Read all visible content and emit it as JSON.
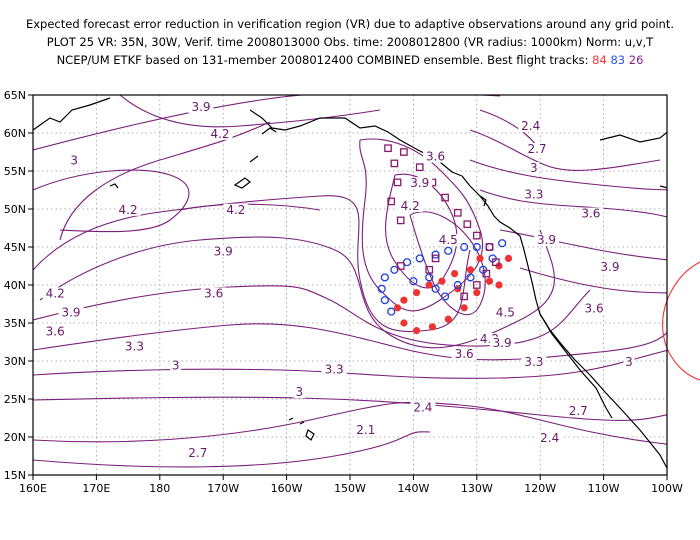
{
  "title": {
    "line1": "Expected forecast error reduction in verification region (VR) due to adaptive observations around any grid point.",
    "line2": "PLOT 25 VR: 35N, 30W, Verif. time 2008013000 Obs. time: 2008012800 (VR radius: 1000km) Norm: u,v,T",
    "line3_prefix": "NCEP/UM ETKF based on 131-member 2008012400 COMBINED ensemble.  Best flight tracks:",
    "track84": "84",
    "track83": "83",
    "track26": "26"
  },
  "axes": {
    "x_labels": [
      "160E",
      "170E",
      "180",
      "170W",
      "160W",
      "150W",
      "140W",
      "130W",
      "120W",
      "110W",
      "100W"
    ],
    "y_labels": [
      "15N",
      "20N",
      "25N",
      "30N",
      "35N",
      "40N",
      "45N",
      "50N",
      "55N",
      "60N",
      "65N"
    ]
  },
  "contour_labels": [
    {
      "text": "3.9",
      "lon": -173.5,
      "lat": 63.0
    },
    {
      "text": "4.2",
      "lon": -170.5,
      "lat": 59.5
    },
    {
      "text": "3",
      "lon": 166.5,
      "lat": 56.0
    },
    {
      "text": "4.2",
      "lon": 175.0,
      "lat": 49.5
    },
    {
      "text": "4.2",
      "lon": -168.0,
      "lat": 49.5
    },
    {
      "text": "3.9",
      "lon": -170.0,
      "lat": 44.0
    },
    {
      "text": "4.2",
      "lon": 163.5,
      "lat": 38.5
    },
    {
      "text": "3.9",
      "lon": 166.0,
      "lat": 36.0
    },
    {
      "text": "3.6",
      "lon": 163.5,
      "lat": 33.5
    },
    {
      "text": "3.6",
      "lon": -171.5,
      "lat": 38.5
    },
    {
      "text": "3.3",
      "lon": 176.0,
      "lat": 31.5
    },
    {
      "text": "3",
      "lon": -177.5,
      "lat": 29.0
    },
    {
      "text": "3.3",
      "lon": -152.5,
      "lat": 28.5
    },
    {
      "text": "3",
      "lon": -158.0,
      "lat": 25.5
    },
    {
      "text": "2.7",
      "lon": -174.0,
      "lat": 17.5
    },
    {
      "text": "2.1",
      "lon": -147.5,
      "lat": 20.5
    },
    {
      "text": "2.4",
      "lon": -138.5,
      "lat": 23.5
    },
    {
      "text": "3.6",
      "lon": -136.5,
      "lat": 56.5
    },
    {
      "text": "3.9",
      "lon": -139.0,
      "lat": 53.0
    },
    {
      "text": "4.2",
      "lon": -140.5,
      "lat": 50.0
    },
    {
      "text": "4.5",
      "lon": -134.5,
      "lat": 45.5
    },
    {
      "text": "4.5",
      "lon": -125.5,
      "lat": 36.0
    },
    {
      "text": "4.2",
      "lon": -128.0,
      "lat": 32.5
    },
    {
      "text": "3.9",
      "lon": -126.0,
      "lat": 32.0
    },
    {
      "text": "3.6",
      "lon": -132.0,
      "lat": 30.5
    },
    {
      "text": "3.3",
      "lon": -121.0,
      "lat": 29.5
    },
    {
      "text": "2.4",
      "lon": -121.5,
      "lat": 60.5
    },
    {
      "text": "2.7",
      "lon": -120.5,
      "lat": 57.5
    },
    {
      "text": "3",
      "lon": -121.0,
      "lat": 55.0
    },
    {
      "text": "3.3",
      "lon": -121.0,
      "lat": 51.5
    },
    {
      "text": "3.6",
      "lon": -112.0,
      "lat": 49.0
    },
    {
      "text": "3.9",
      "lon": -119.0,
      "lat": 45.5
    },
    {
      "text": "3.9",
      "lon": -109.0,
      "lat": 42.0
    },
    {
      "text": "3.6",
      "lon": -111.5,
      "lat": 36.5
    },
    {
      "text": "3",
      "lon": -106.0,
      "lat": 29.5
    },
    {
      "text": "2.7",
      "lon": -114.0,
      "lat": 23.0
    },
    {
      "text": "2.4",
      "lon": -118.5,
      "lat": 19.5
    }
  ],
  "markers": {
    "track84": [
      [
        -141.5,
        35.0
      ],
      [
        -139.5,
        34.0
      ],
      [
        -137.0,
        34.5
      ],
      [
        -134.5,
        35.5
      ],
      [
        -132.0,
        37.0
      ],
      [
        -130.0,
        39.0
      ],
      [
        -128.0,
        40.5
      ],
      [
        -126.5,
        42.5
      ],
      [
        -125.0,
        43.5
      ],
      [
        -126.5,
        40.0
      ],
      [
        -133.0,
        39.5
      ],
      [
        -135.5,
        40.5
      ],
      [
        -137.5,
        40.0
      ],
      [
        -139.5,
        39.0
      ],
      [
        -141.5,
        38.0
      ],
      [
        -142.5,
        37.0
      ],
      [
        -131.0,
        42.0
      ],
      [
        -133.5,
        41.5
      ],
      [
        -129.5,
        43.5
      ]
    ],
    "track83": [
      [
        -143.5,
        36.5
      ],
      [
        -144.5,
        38.0
      ],
      [
        -145.0,
        39.5
      ],
      [
        -144.5,
        41.0
      ],
      [
        -143.0,
        42.0
      ],
      [
        -141.0,
        43.0
      ],
      [
        -139.0,
        43.5
      ],
      [
        -136.5,
        44.0
      ],
      [
        -134.5,
        44.5
      ],
      [
        -132.0,
        45.0
      ],
      [
        -130.0,
        45.0
      ],
      [
        -128.0,
        45.0
      ],
      [
        -126.0,
        45.5
      ],
      [
        -135.0,
        38.5
      ],
      [
        -136.5,
        39.5
      ],
      [
        -137.5,
        41.0
      ],
      [
        -133.0,
        40.0
      ],
      [
        -131.0,
        41.0
      ],
      [
        -129.0,
        42.0
      ],
      [
        -127.5,
        43.5
      ],
      [
        -140.0,
        40.5
      ]
    ],
    "track26": [
      [
        -144.0,
        58.0
      ],
      [
        -143.0,
        56.0
      ],
      [
        -142.5,
        53.5
      ],
      [
        -143.5,
        51.0
      ],
      [
        -142.0,
        48.5
      ],
      [
        -141.5,
        57.5
      ],
      [
        -139.0,
        55.5
      ],
      [
        -137.0,
        53.5
      ],
      [
        -135.0,
        51.5
      ],
      [
        -133.0,
        49.5
      ],
      [
        -131.5,
        48.0
      ],
      [
        -130.0,
        46.5
      ],
      [
        -128.0,
        45.0
      ],
      [
        -127.0,
        43.0
      ],
      [
        -128.5,
        41.5
      ],
      [
        -130.0,
        40.0
      ],
      [
        -132.0,
        38.5
      ],
      [
        -137.5,
        42.0
      ],
      [
        -136.5,
        43.5
      ],
      [
        -142.0,
        42.5
      ]
    ]
  }
}
